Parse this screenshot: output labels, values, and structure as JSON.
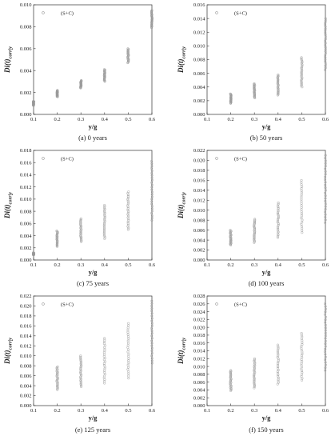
{
  "chart_data": [
    {
      "type": "scatter",
      "caption": "(a) 0 years",
      "xlabel": "y/g",
      "ylabel": "Di(t)corr|y",
      "legend": "(S+C)",
      "legend_position": "top-left",
      "xlim": [
        0.1,
        0.6
      ],
      "ylim": [
        0,
        0.01
      ],
      "xticks": [
        "0.1",
        "0.2",
        "0.3",
        "0.4",
        "0.5",
        "0.6"
      ],
      "yticks": [
        "0.000",
        "0.002",
        "0.004",
        "0.006",
        "0.008",
        "0.010"
      ],
      "series": [
        {
          "ranges": [
            {
              "x": 0.1,
              "min": 0.0008,
              "max": 0.0012
            },
            {
              "x": 0.2,
              "min": 0.0016,
              "max": 0.0022
            },
            {
              "x": 0.3,
              "min": 0.0024,
              "max": 0.0031
            },
            {
              "x": 0.4,
              "min": 0.003,
              "max": 0.0041
            },
            {
              "x": 0.5,
              "min": 0.0047,
              "max": 0.006
            },
            {
              "x": 0.6,
              "min": 0.0079,
              "max": 0.0095
            }
          ]
        }
      ]
    },
    {
      "type": "scatter",
      "caption": "(b) 50 years",
      "xlabel": "y/g",
      "ylabel": "Di(t)corr|y",
      "legend": "(S+C)",
      "legend_position": "top-left",
      "xlim": [
        0.1,
        0.6
      ],
      "ylim": [
        0,
        0.016
      ],
      "xticks": [
        "0.1",
        "0.2",
        "0.3",
        "0.4",
        "0.5",
        "0.6"
      ],
      "yticks": [
        "0.000",
        "0.002",
        "0.004",
        "0.006",
        "0.008",
        "0.010",
        "0.012",
        "0.014",
        "0.016"
      ],
      "series": [
        {
          "ranges": [
            {
              "x": 0.2,
              "min": 0.0016,
              "max": 0.003
            },
            {
              "x": 0.3,
              "min": 0.0024,
              "max": 0.0045
            },
            {
              "x": 0.4,
              "min": 0.0028,
              "max": 0.0058
            },
            {
              "x": 0.5,
              "min": 0.004,
              "max": 0.0083
            },
            {
              "x": 0.6,
              "min": 0.0065,
              "max": 0.014
            }
          ]
        }
      ]
    },
    {
      "type": "scatter",
      "caption": "(c) 75 years",
      "xlabel": "y/g",
      "ylabel": "Di(t)corr|y",
      "legend": "(S+C)",
      "legend_position": "top-left",
      "xlim": [
        0.1,
        0.6
      ],
      "ylim": [
        0,
        0.018
      ],
      "xticks": [
        "0.1",
        "0.2",
        "0.3",
        "0.4",
        "0.5",
        "0.6"
      ],
      "yticks": [
        "0.000",
        "0.002",
        "0.004",
        "0.006",
        "0.008",
        "0.010",
        "0.012",
        "0.014",
        "0.016",
        "0.018"
      ],
      "series": [
        {
          "ranges": [
            {
              "x": 0.1,
              "min": 0.0008,
              "max": 0.0012
            },
            {
              "x": 0.2,
              "min": 0.0022,
              "max": 0.0048
            },
            {
              "x": 0.3,
              "min": 0.003,
              "max": 0.0068
            },
            {
              "x": 0.4,
              "min": 0.0035,
              "max": 0.009
            },
            {
              "x": 0.5,
              "min": 0.005,
              "max": 0.0112
            },
            {
              "x": 0.6,
              "min": 0.0065,
              "max": 0.0162
            }
          ]
        }
      ]
    },
    {
      "type": "scatter",
      "caption": "(d) 100 years",
      "xlabel": "y/g",
      "ylabel": "Di(t)corr|y",
      "legend": "(S+C)",
      "legend_position": "top-left",
      "xlim": [
        0.1,
        0.6
      ],
      "ylim": [
        0,
        0.022
      ],
      "xticks": [
        "0.1",
        "0.2",
        "0.3",
        "0.4",
        "0.5",
        "0.6"
      ],
      "yticks": [
        "0.000",
        "0.002",
        "0.004",
        "0.006",
        "0.008",
        "0.010",
        "0.012",
        "0.014",
        "0.016",
        "0.018",
        "0.020",
        "0.022"
      ],
      "series": [
        {
          "ranges": [
            {
              "x": 0.2,
              "min": 0.003,
              "max": 0.006
            },
            {
              "x": 0.3,
              "min": 0.0035,
              "max": 0.0082
            },
            {
              "x": 0.4,
              "min": 0.0045,
              "max": 0.0115
            },
            {
              "x": 0.5,
              "min": 0.0055,
              "max": 0.016
            },
            {
              "x": 0.6,
              "min": 0.0075,
              "max": 0.021
            }
          ]
        }
      ]
    },
    {
      "type": "scatter",
      "caption": "(e) 125 years",
      "xlabel": "y/g",
      "ylabel": "Di(t)corr|y",
      "legend": "(S+C)",
      "legend_position": "top-left",
      "xlim": [
        0.1,
        0.6
      ],
      "ylim": [
        0,
        0.022
      ],
      "xticks": [
        "0.1",
        "0.2",
        "0.3",
        "0.4",
        "0.5",
        "0.6"
      ],
      "yticks": [
        "0.000",
        "0.002",
        "0.004",
        "0.006",
        "0.008",
        "0.010",
        "0.012",
        "0.014",
        "0.016",
        "0.018",
        "0.020",
        "0.022"
      ],
      "series": [
        {
          "ranges": [
            {
              "x": 0.2,
              "min": 0.0032,
              "max": 0.0078
            },
            {
              "x": 0.3,
              "min": 0.0038,
              "max": 0.01
            },
            {
              "x": 0.4,
              "min": 0.0045,
              "max": 0.0135
            },
            {
              "x": 0.5,
              "min": 0.0055,
              "max": 0.0165
            },
            {
              "x": 0.6,
              "min": 0.0085,
              "max": 0.021
            }
          ]
        }
      ]
    },
    {
      "type": "scatter",
      "caption": "(f) 150 years",
      "xlabel": "y/g",
      "ylabel": "Di(t)corr|y",
      "legend": "(S+C)",
      "legend_position": "top-left",
      "xlim": [
        0.1,
        0.6
      ],
      "ylim": [
        0,
        0.028
      ],
      "xticks": [
        "0.1",
        "0.2",
        "0.3",
        "0.4",
        "0.5",
        "0.6"
      ],
      "yticks": [
        "0.000",
        "0.002",
        "0.004",
        "0.006",
        "0.008",
        "0.010",
        "0.012",
        "0.014",
        "0.016",
        "0.018",
        "0.020",
        "0.022",
        "0.024",
        "0.026",
        "0.028"
      ],
      "series": [
        {
          "ranges": [
            {
              "x": 0.2,
              "min": 0.0038,
              "max": 0.009
            },
            {
              "x": 0.3,
              "min": 0.0045,
              "max": 0.012
            },
            {
              "x": 0.4,
              "min": 0.0055,
              "max": 0.0155
            },
            {
              "x": 0.5,
              "min": 0.0065,
              "max": 0.0185
            },
            {
              "x": 0.6,
              "min": 0.009,
              "max": 0.026
            }
          ]
        }
      ]
    }
  ],
  "colors": {
    "marker": "#9a9a9a",
    "axis": "#333333"
  }
}
